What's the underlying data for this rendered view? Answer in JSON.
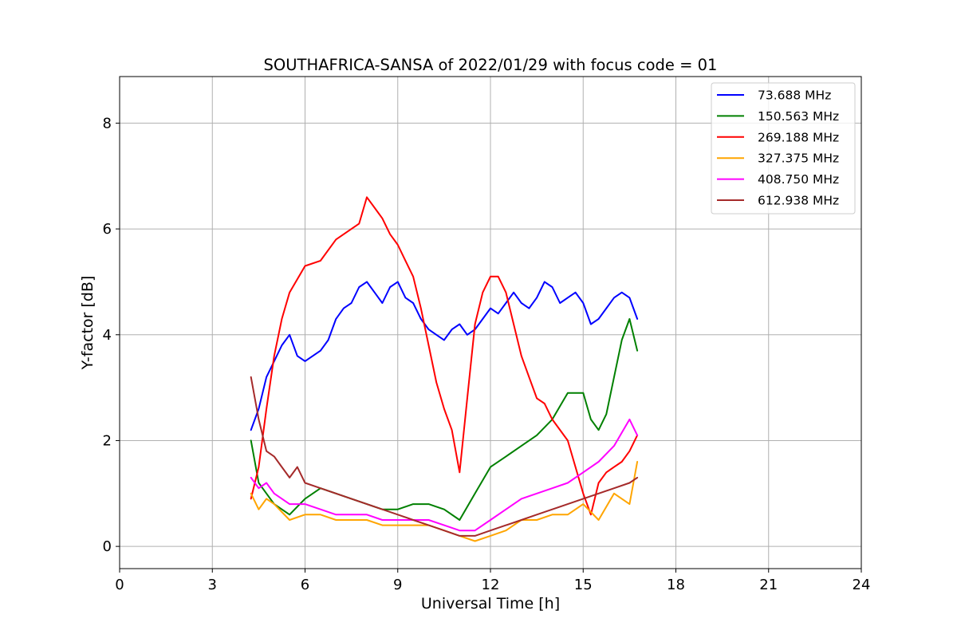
{
  "chart_data": {
    "type": "line",
    "title": "SOUTHAFRICA-SANSA of 2022/01/29 with focus code = 01",
    "xlabel": "Universal Time [h]",
    "ylabel": "Y-factor [dB]",
    "xlim": [
      0,
      24
    ],
    "ylim": [
      -0.42,
      8.88
    ],
    "xticks": [
      0,
      3,
      6,
      9,
      12,
      15,
      18,
      21,
      24
    ],
    "yticks": [
      0,
      2,
      4,
      6,
      8
    ],
    "grid": true,
    "legend_position": "top-right",
    "series": [
      {
        "name": " 73.688 MHz",
        "color": "#0000ff",
        "x": [
          4.25,
          4.5,
          4.75,
          5.0,
          5.25,
          5.5,
          5.75,
          6.0,
          6.25,
          6.5,
          6.75,
          7.0,
          7.25,
          7.5,
          7.75,
          8.0,
          8.25,
          8.5,
          8.75,
          9.0,
          9.25,
          9.5,
          9.75,
          10.0,
          10.25,
          10.5,
          10.75,
          11.0,
          11.25,
          11.5,
          11.75,
          12.0,
          12.25,
          12.5,
          12.75,
          13.0,
          13.25,
          13.5,
          13.75,
          14.0,
          14.25,
          14.5,
          14.75,
          15.0,
          15.25,
          15.5,
          15.75,
          16.0,
          16.25,
          16.5,
          16.75
        ],
        "y": [
          2.2,
          2.6,
          3.2,
          3.5,
          3.8,
          4.0,
          3.6,
          3.5,
          3.6,
          3.7,
          3.9,
          4.3,
          4.5,
          4.6,
          4.9,
          5.0,
          4.8,
          4.6,
          4.9,
          5.0,
          4.7,
          4.6,
          4.3,
          4.1,
          4.0,
          3.9,
          4.1,
          4.2,
          4.0,
          4.1,
          4.3,
          4.5,
          4.4,
          4.6,
          4.8,
          4.6,
          4.5,
          4.7,
          5.0,
          4.9,
          4.6,
          4.7,
          4.8,
          4.6,
          4.2,
          4.3,
          4.5,
          4.7,
          4.8,
          4.7,
          4.3
        ]
      },
      {
        "name": "150.563 MHz",
        "color": "#008000",
        "x": [
          4.25,
          4.5,
          4.75,
          5.0,
          5.5,
          6.0,
          6.5,
          7.0,
          7.5,
          8.0,
          8.5,
          9.0,
          9.5,
          10.0,
          10.5,
          11.0,
          11.5,
          12.0,
          12.5,
          13.0,
          13.5,
          14.0,
          14.5,
          15.0,
          15.25,
          15.5,
          15.75,
          16.0,
          16.25,
          16.5,
          16.75
        ],
        "y": [
          2.0,
          1.2,
          1.0,
          0.8,
          0.6,
          0.9,
          1.1,
          1.0,
          0.9,
          0.8,
          0.7,
          0.7,
          0.8,
          0.8,
          0.7,
          0.5,
          1.0,
          1.5,
          1.7,
          1.9,
          2.1,
          2.4,
          2.9,
          2.9,
          2.4,
          2.2,
          2.5,
          3.2,
          3.9,
          4.3,
          3.7
        ]
      },
      {
        "name": "269.188 MHz",
        "color": "#ff0000",
        "x": [
          4.25,
          4.5,
          4.75,
          5.0,
          5.25,
          5.5,
          6.0,
          6.5,
          7.0,
          7.5,
          7.75,
          8.0,
          8.25,
          8.5,
          8.75,
          9.0,
          9.25,
          9.5,
          9.75,
          10.0,
          10.25,
          10.5,
          10.75,
          11.0,
          11.25,
          11.5,
          11.75,
          12.0,
          12.25,
          12.5,
          12.75,
          13.0,
          13.25,
          13.5,
          13.75,
          14.0,
          14.5,
          15.0,
          15.25,
          15.5,
          15.75,
          16.0,
          16.25,
          16.5,
          16.75
        ],
        "y": [
          0.9,
          1.5,
          2.6,
          3.6,
          4.3,
          4.8,
          5.3,
          5.4,
          5.8,
          6.0,
          6.1,
          6.6,
          6.4,
          6.2,
          5.9,
          5.7,
          5.4,
          5.1,
          4.5,
          3.8,
          3.1,
          2.6,
          2.2,
          1.4,
          2.8,
          4.2,
          4.8,
          5.1,
          5.1,
          4.8,
          4.2,
          3.6,
          3.2,
          2.8,
          2.7,
          2.4,
          2.0,
          1.0,
          0.6,
          1.2,
          1.4,
          1.5,
          1.6,
          1.8,
          2.1
        ]
      },
      {
        "name": "327.375 MHz",
        "color": "#ffa500",
        "x": [
          4.25,
          4.5,
          4.75,
          5.0,
          5.5,
          6.0,
          6.5,
          7.0,
          7.5,
          8.0,
          8.5,
          9.0,
          9.5,
          10.0,
          10.5,
          11.0,
          11.5,
          12.0,
          12.5,
          13.0,
          13.5,
          14.0,
          14.5,
          15.0,
          15.5,
          16.0,
          16.5,
          16.75
        ],
        "y": [
          1.0,
          0.7,
          0.9,
          0.8,
          0.5,
          0.6,
          0.6,
          0.5,
          0.5,
          0.5,
          0.4,
          0.4,
          0.4,
          0.4,
          0.3,
          0.2,
          0.1,
          0.2,
          0.3,
          0.5,
          0.5,
          0.6,
          0.6,
          0.8,
          0.5,
          1.0,
          0.8,
          1.6
        ]
      },
      {
        "name": "408.750 MHz",
        "color": "#ff00ff",
        "x": [
          4.25,
          4.5,
          4.75,
          5.0,
          5.5,
          6.0,
          6.5,
          7.0,
          7.5,
          8.0,
          8.5,
          9.0,
          9.5,
          10.0,
          10.5,
          11.0,
          11.5,
          12.0,
          12.5,
          13.0,
          13.5,
          14.0,
          14.5,
          15.0,
          15.5,
          16.0,
          16.5,
          16.75
        ],
        "y": [
          1.3,
          1.1,
          1.2,
          1.0,
          0.8,
          0.8,
          0.7,
          0.6,
          0.6,
          0.6,
          0.5,
          0.5,
          0.5,
          0.5,
          0.4,
          0.3,
          0.3,
          0.5,
          0.7,
          0.9,
          1.0,
          1.1,
          1.2,
          1.4,
          1.6,
          1.9,
          2.4,
          2.1
        ]
      },
      {
        "name": "612.938 MHz",
        "color": "#a52a2a",
        "x": [
          4.25,
          4.5,
          4.75,
          5.0,
          5.25,
          5.5,
          5.75,
          6.0,
          6.5,
          7.0,
          7.5,
          8.0,
          8.5,
          9.0,
          9.5,
          10.0,
          10.5,
          11.0,
          11.5,
          12.0,
          12.5,
          13.0,
          13.5,
          14.0,
          14.5,
          15.0,
          15.5,
          16.0,
          16.5,
          16.75
        ],
        "y": [
          3.2,
          2.4,
          1.8,
          1.7,
          1.5,
          1.3,
          1.5,
          1.2,
          1.1,
          1.0,
          0.9,
          0.8,
          0.7,
          0.6,
          0.5,
          0.4,
          0.3,
          0.2,
          0.2,
          0.3,
          0.4,
          0.5,
          0.6,
          0.7,
          0.8,
          0.9,
          1.0,
          1.1,
          1.2,
          1.3
        ]
      }
    ]
  }
}
